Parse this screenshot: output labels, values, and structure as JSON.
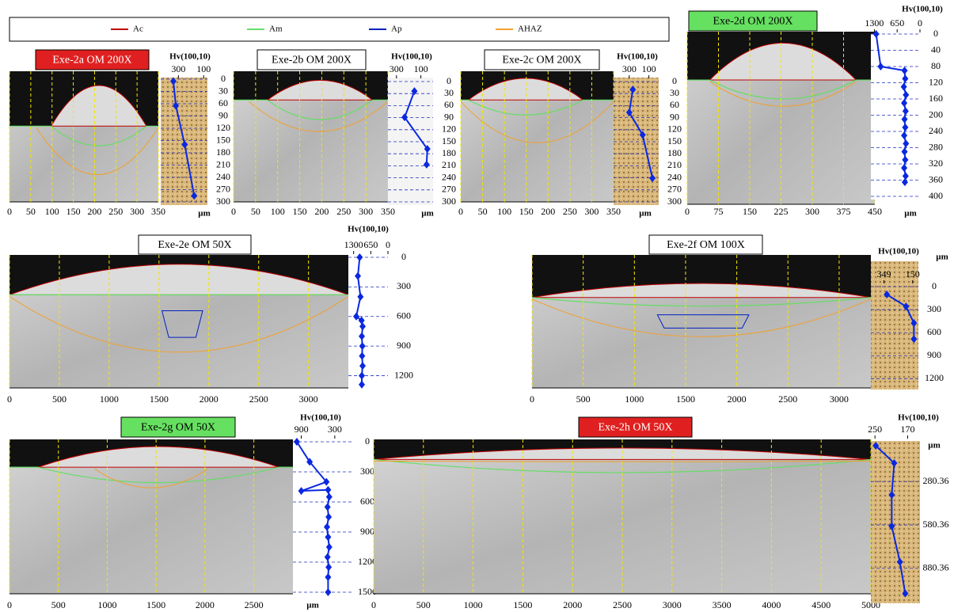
{
  "legend": {
    "series": [
      {
        "name": "Ac",
        "color": "#c00000"
      },
      {
        "name": "Am",
        "color": "#66dd66"
      },
      {
        "name": "Ap",
        "color": "#0020c0"
      },
      {
        "name": "AHAZ",
        "color": "#f0a030"
      }
    ]
  },
  "chart_data": [
    {
      "type": "micrograph-hardness",
      "title": "Exe-2a OM 200X",
      "title_bg": "#e02020",
      "title_color": "#ffffff",
      "xlim": [
        0,
        350
      ],
      "xticks": [
        0,
        50,
        100,
        150,
        200,
        250,
        300,
        350
      ],
      "unit": "µm",
      "hv_label": "Hv(100,10)",
      "hv_lim": [
        440,
        70
      ],
      "hv_ticks": [
        300,
        100
      ],
      "depth_lim": [
        0,
        300
      ],
      "depth_ticks": [
        0,
        30,
        60,
        90,
        120,
        150,
        180,
        210,
        240,
        270,
        300
      ],
      "profile": {
        "depth": [
          5,
          65,
          160,
          285
        ],
        "hv": [
          340,
          320,
          250,
          175
        ]
      }
    },
    {
      "type": "micrograph-hardness",
      "title": "Exe-2b OM 200X",
      "title_bg": "#ffffff",
      "title_color": "#000000",
      "xlim": [
        0,
        350
      ],
      "xticks": [
        0,
        50,
        100,
        150,
        200,
        250,
        300,
        350
      ],
      "unit": "µm",
      "hv_label": "Hv(100,10)",
      "hv_lim": [
        370,
        0
      ],
      "hv_ticks": [
        300,
        100
      ],
      "depth_lim": [
        0,
        300
      ],
      "depth_ticks": [
        0,
        30,
        60,
        90,
        120,
        150,
        180,
        210,
        240,
        270,
        300
      ],
      "profile": {
        "depth": [
          24,
          89,
          168,
          207
        ],
        "hv": [
          153,
          233,
          47,
          53
        ]
      }
    },
    {
      "type": "micrograph-hardness",
      "title": "Exe-2c OM 200X",
      "title_bg": "#ffffff",
      "title_color": "#000000",
      "xlim": [
        0,
        350
      ],
      "xticks": [
        0,
        50,
        100,
        150,
        200,
        250,
        300,
        350
      ],
      "unit": "µm",
      "hv_label": "Hv(100,10)",
      "hv_lim": [
        460,
        0
      ],
      "hv_ticks": [
        300,
        100
      ],
      "depth_lim": [
        0,
        300
      ],
      "depth_ticks": [
        0,
        30,
        60,
        90,
        120,
        150,
        180,
        210,
        240,
        270,
        300
      ],
      "profile": {
        "depth": [
          20,
          77,
          133,
          241
        ],
        "hv": [
          264,
          300,
          164,
          64
        ]
      }
    },
    {
      "type": "micrograph-hardness",
      "title": "Exe-2d OM 200X",
      "title_bg": "#66e060",
      "title_color": "#000000",
      "xlim": [
        0,
        450
      ],
      "xticks": [
        0,
        75,
        150,
        225,
        300,
        375,
        450
      ],
      "unit": "µm",
      "hv_label": "Hv(100,10)",
      "hv_lim": [
        1400,
        0
      ],
      "hv_ticks": [
        1300,
        650,
        0
      ],
      "depth_lim": [
        0,
        400
      ],
      "depth_ticks": [
        0,
        40,
        80,
        120,
        160,
        200,
        240,
        280,
        320,
        360,
        400
      ],
      "profile": {
        "depth": [
          0,
          80,
          90,
          110,
          130,
          150,
          170,
          190,
          210,
          230,
          250,
          270,
          290,
          310,
          330,
          350,
          365
        ],
        "hv": [
          1250,
          1120,
          440,
          420,
          460,
          400,
          450,
          410,
          440,
          420,
          450,
          400,
          440,
          420,
          450,
          410,
          430
        ]
      }
    },
    {
      "type": "micrograph-hardness",
      "title": "Exe-2e OM 50X",
      "title_bg": "#ffffff",
      "title_color": "#000000",
      "xlim": [
        0,
        3400
      ],
      "xticks": [
        0,
        500,
        1000,
        1500,
        2000,
        2500,
        3000
      ],
      "hv_label": "Hv(100,10)",
      "hv_lim": [
        1500,
        0
      ],
      "hv_ticks": [
        1300,
        650,
        0
      ],
      "depth_lim": [
        0,
        1300
      ],
      "depth_ticks": [
        0,
        300,
        600,
        900,
        1200
      ],
      "profile": {
        "depth": [
          0,
          190,
          400,
          600,
          640,
          700,
          800,
          900,
          1000,
          1100,
          1200,
          1290
        ],
        "hv": [
          1070,
          1140,
          1040,
          1200,
          1000,
          960,
          990,
          970,
          980,
          960,
          990,
          990
        ]
      }
    },
    {
      "type": "micrograph-hardness",
      "title": "Exe-2f OM 100X",
      "title_bg": "#ffffff",
      "title_color": "#000000",
      "xlim": [
        0,
        3310
      ],
      "xticks": [
        0,
        500,
        1000,
        1500,
        2000,
        2500,
        3000
      ],
      "unit": "µm",
      "hv_label": "Hv(100,10)",
      "hv_lim": [
        440,
        110
      ],
      "hv_ticks": [
        349,
        150
      ],
      "depth_lim": [
        0,
        1300
      ],
      "depth_ticks": [
        0,
        300,
        600,
        900,
        1200
      ],
      "profile": {
        "depth": [
          103,
          259,
          476,
          683
        ],
        "hv": [
          329,
          196,
          141,
          141
        ]
      }
    },
    {
      "type": "micrograph-hardness",
      "title": "Exe-2g OM 50X",
      "title_bg": "#66e060",
      "title_color": "#000000",
      "xlim": [
        0,
        2900
      ],
      "xticks": [
        0,
        500,
        1000,
        1500,
        2000,
        2500
      ],
      "unit": "µm",
      "hv_label": "Hv(100,10)",
      "hv_lim": [
        1050,
        0
      ],
      "hv_ticks": [
        900,
        300
      ],
      "depth_lim": [
        0,
        1500
      ],
      "depth_ticks": [
        0,
        300,
        600,
        900,
        1200,
        1500
      ],
      "profile": {
        "depth": [
          0,
          200,
          400,
          490,
          480,
          550,
          650,
          750,
          850,
          950,
          1050,
          1150,
          1250,
          1350,
          1500
        ],
        "hv": [
          980,
          750,
          450,
          900,
          420,
          400,
          430,
          410,
          440,
          420,
          400,
          430,
          410,
          420,
          420
        ]
      }
    },
    {
      "type": "micrograph-hardness",
      "title": "Exe-2h OM 50X",
      "title_bg": "#e02020",
      "title_color": "#ffffff",
      "xlim": [
        0,
        5000
      ],
      "xticks": [
        0,
        500,
        1000,
        1500,
        2000,
        2500,
        3000,
        3500,
        4000,
        4500,
        5000
      ],
      "unit": "µm",
      "hv_label": "Hv(100,10)",
      "hv_lim": [
        260,
        140
      ],
      "hv_ticks": [
        250,
        170
      ],
      "depth_lim": [
        0,
        1100
      ],
      "depth_ticks": [
        280.36,
        580.36,
        880.36
      ],
      "profile": {
        "depth": [
          33,
          153,
          372,
          590,
          836,
          1054
        ],
        "hv": [
          248,
          203,
          209,
          209,
          189,
          176
        ]
      }
    }
  ]
}
